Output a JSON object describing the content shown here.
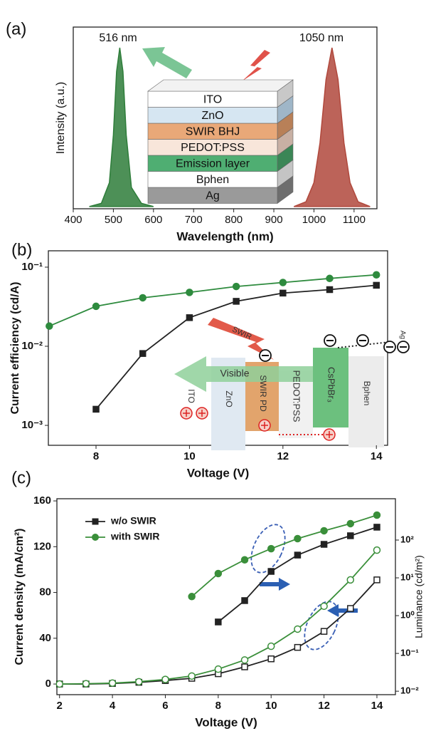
{
  "chart_data": [
    {
      "type": "area",
      "panel_label": "(a)",
      "xlabel": "Wavelength (nm)",
      "ylabel": "Intensity (a.u.)",
      "xlim": [
        400,
        1157
      ],
      "ylim": [
        -0.014,
        1.13
      ],
      "xticks": [
        400,
        500,
        600,
        700,
        800,
        900,
        1000,
        1100
      ],
      "annotations": [
        "516 nm",
        "1050 nm"
      ],
      "layers": [
        "ITO",
        "ZnO",
        "SWIR BHJ",
        "PEDOT:PSS",
        "Emission layer",
        "Bphen",
        "Ag"
      ],
      "series": [
        {
          "color": "#2e7d3a",
          "x": [
            440,
            470,
            490,
            500,
            508,
            516,
            524,
            532,
            545,
            570,
            600
          ],
          "values": [
            0,
            0.02,
            0.15,
            0.45,
            0.85,
            1,
            0.85,
            0.45,
            0.12,
            0.02,
            0
          ]
        },
        {
          "color": "#b0483c",
          "x": [
            950,
            980,
            1000,
            1015,
            1030,
            1045,
            1060,
            1075,
            1090,
            1110,
            1140
          ],
          "values": [
            0,
            0.03,
            0.15,
            0.4,
            0.8,
            1,
            0.8,
            0.4,
            0.15,
            0.03,
            0
          ]
        }
      ]
    },
    {
      "type": "line",
      "panel_label": "(b)",
      "xlabel": "Voltage (V)",
      "ylabel": "Current efficiency (cd/A)",
      "xlim": [
        6.98,
        14.24
      ],
      "ylim": [
        0.00056,
        0.161
      ],
      "ylog": true,
      "xticks": [
        8,
        10,
        12,
        14
      ],
      "yticks": [
        {
          "value": 0.001,
          "label": "10⁻³"
        },
        {
          "value": 0.01,
          "label": "10⁻²"
        },
        {
          "value": 0.1,
          "label": "10⁻¹"
        }
      ],
      "annotations": [
        "SWIR",
        "Visible",
        "ITO",
        "ZnO",
        "SWIR PD",
        "PEDOT:PSS",
        "CsPbBr₃",
        "Bphen",
        "Ag"
      ],
      "series": [
        {
          "color": "#2e8b3e",
          "marker": "circle",
          "filled": true,
          "x": [
            7,
            8,
            9,
            10,
            11,
            12,
            13,
            14
          ],
          "values": [
            0.018,
            0.032,
            0.041,
            0.048,
            0.057,
            0.064,
            0.072,
            0.08
          ]
        },
        {
          "color": "#222222",
          "marker": "square",
          "filled": true,
          "x": [
            8,
            9,
            10,
            11,
            12,
            13,
            14
          ],
          "values": [
            0.0016,
            0.0081,
            0.023,
            0.037,
            0.047,
            0.052,
            0.059
          ]
        }
      ]
    },
    {
      "type": "line",
      "panel_label": "(c)",
      "xlabel": "Voltage (V)",
      "ylabel": "Current density (mA/cm²)",
      "y2label": "Luminance (cd/m²)",
      "xlim": [
        1.9,
        14.7
      ],
      "ylim": [
        -9.3,
        161.9
      ],
      "xticks": [
        2,
        4,
        6,
        8,
        10,
        12,
        14
      ],
      "yticks": [
        0,
        40,
        80,
        120,
        160
      ],
      "y2lim": [
        0.0081,
        1240
      ],
      "y2log": true,
      "y2ticks": [
        {
          "value": 0.01,
          "label": "10⁻²"
        },
        {
          "value": 0.1,
          "label": "10⁻¹"
        },
        {
          "value": 1,
          "label": "10⁰"
        },
        {
          "value": 10,
          "label": "10¹"
        },
        {
          "value": 100,
          "label": "10²"
        }
      ],
      "legend": "upper left",
      "series": [
        {
          "name": "w/o SWIR",
          "color": "#222222",
          "marker": "square",
          "filled": true,
          "axis": "y2",
          "x": [
            8,
            9,
            10,
            11,
            12,
            13,
            14
          ],
          "values": [
            0.68,
            2.5,
            14.8,
            40,
            77,
            130,
            219
          ]
        },
        {
          "name": "with SWIR",
          "color": "#3a8f3a",
          "marker": "circle",
          "filled": true,
          "axis": "y2",
          "x": [
            7,
            8,
            9,
            10,
            11,
            12,
            13,
            14
          ],
          "values": [
            3.2,
            13,
            30,
            59,
            109,
            176,
            272,
            457
          ]
        },
        {
          "color": "#222222",
          "marker": "square",
          "filled": false,
          "x": [
            2,
            3,
            4,
            5,
            6,
            7,
            8,
            9,
            10,
            11,
            12,
            13,
            14
          ],
          "values": [
            0,
            0,
            0.5,
            1.5,
            3,
            5,
            9,
            15,
            22,
            32,
            46,
            66,
            91
          ]
        },
        {
          "color": "#3a8f3a",
          "marker": "circle",
          "filled": false,
          "x": [
            2,
            3,
            4,
            5,
            6,
            7,
            8,
            9,
            10,
            11,
            12,
            13,
            14
          ],
          "values": [
            0,
            0.3,
            0.8,
            2,
            4,
            7,
            13,
            21,
            33,
            48,
            68,
            91,
            117
          ]
        }
      ]
    }
  ]
}
